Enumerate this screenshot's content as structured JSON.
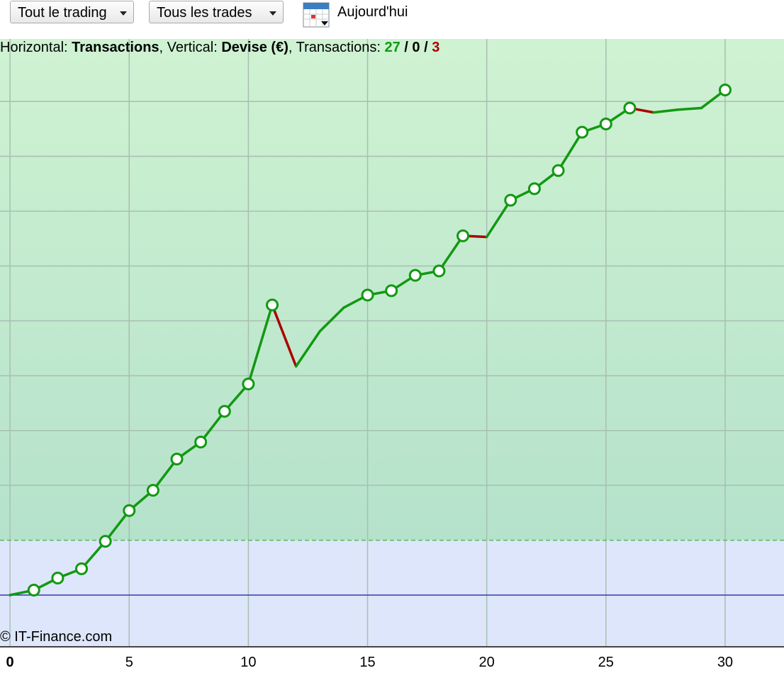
{
  "toolbar": {
    "filter1": "Tout le trading",
    "filter2": "Tous les trades",
    "date": "Aujourd'hui"
  },
  "info": {
    "h_label": "Horizontal: ",
    "h_value": "Transactions",
    "v_label": ", Vertical: ",
    "v_value": "Devise (€)",
    "t_label": ", Transactions: ",
    "wins": 27,
    "sep1": " / ",
    "even": 0,
    "sep2": " / ",
    "losses": 3
  },
  "copyright": "© IT-Finance.com",
  "chart_data": {
    "type": "line",
    "x": [
      0,
      1,
      2,
      3,
      4,
      5,
      6,
      7,
      8,
      9,
      10,
      11,
      12,
      13,
      14,
      15,
      16,
      17,
      18,
      19,
      20,
      21,
      22,
      23,
      24,
      25,
      26,
      27,
      28,
      29,
      30
    ],
    "series": [
      {
        "values": [
          0,
          0.09,
          0.31,
          0.48,
          0.98,
          1.54,
          1.91,
          2.48,
          2.79,
          3.35,
          3.85,
          5.29,
          4.17,
          4.81,
          5.24,
          5.47,
          5.55,
          5.83,
          5.91,
          6.55,
          6.53,
          7.2,
          7.41,
          7.74,
          8.44,
          8.59,
          8.88,
          8.8,
          8.85,
          8.88,
          9.21
        ]
      }
    ],
    "up_color": "#119911",
    "down_color": "#aa0000",
    "xlim": [
      -0.42,
      32.47
    ],
    "xticks": [
      0,
      5,
      10,
      15,
      20,
      25,
      30
    ],
    "ylim": [
      -0.93,
      10.14
    ],
    "yticks": [
      2,
      3,
      4,
      5,
      6,
      7,
      8,
      9
    ],
    "threshold": 1,
    "baseline": 0,
    "grid": true
  }
}
